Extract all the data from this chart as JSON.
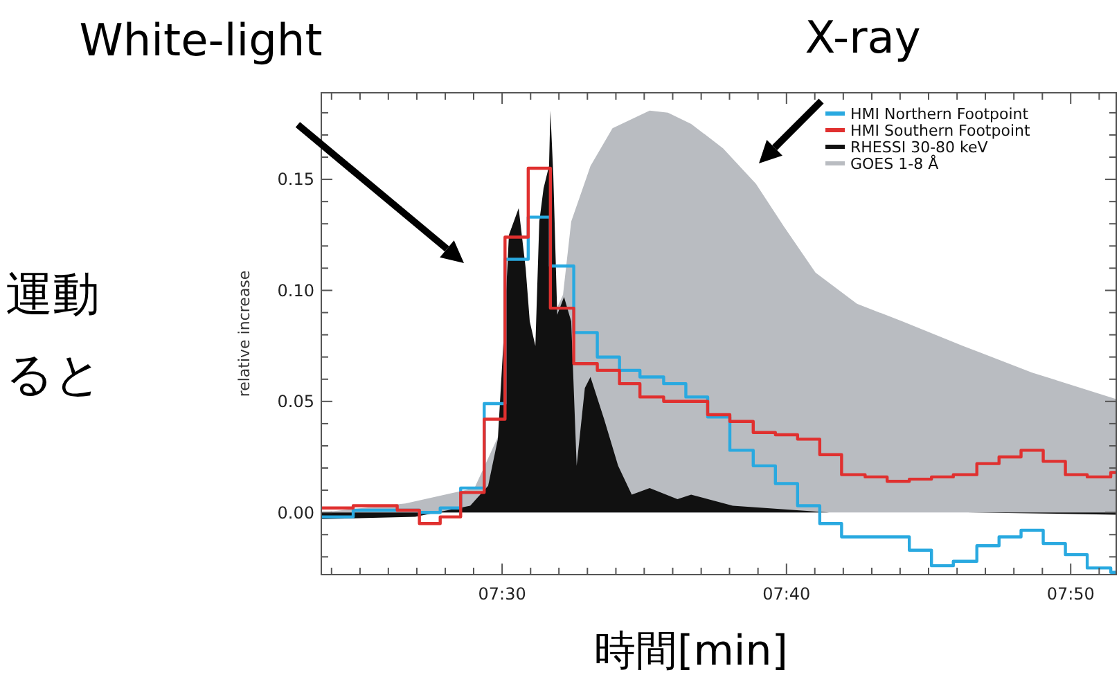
{
  "chart_data": {
    "type": "step",
    "xlabel": "時間[min]",
    "ylabel": "relative increase",
    "annotations": [
      "White-light",
      "X-ray",
      "運動",
      "ると"
    ],
    "xlim": [
      7.394,
      7.86
    ],
    "ylim": [
      -0.028,
      0.189
    ],
    "xticks": [
      {
        "value": 7.4,
        "label": null
      },
      {
        "value": 7.4167,
        "label": null
      },
      {
        "value": 7.4333,
        "label": null
      },
      {
        "value": 7.45,
        "label": null
      },
      {
        "value": 7.4667,
        "label": null
      },
      {
        "value": 7.4833,
        "label": null
      },
      {
        "value": 7.5,
        "label": "07:30"
      },
      {
        "value": 7.5167,
        "label": null
      },
      {
        "value": 7.5333,
        "label": null
      },
      {
        "value": 7.55,
        "label": null
      },
      {
        "value": 7.5667,
        "label": null
      },
      {
        "value": 7.5833,
        "label": null
      },
      {
        "value": 7.6,
        "label": null
      },
      {
        "value": 7.6167,
        "label": null
      },
      {
        "value": 7.6333,
        "label": null
      },
      {
        "value": 7.65,
        "label": null
      },
      {
        "value": 7.6667,
        "label": "07:40"
      },
      {
        "value": 7.6833,
        "label": null
      },
      {
        "value": 7.7,
        "label": null
      },
      {
        "value": 7.7167,
        "label": null
      },
      {
        "value": 7.7333,
        "label": null
      },
      {
        "value": 7.75,
        "label": null
      },
      {
        "value": 7.7667,
        "label": null
      },
      {
        "value": 7.7833,
        "label": null
      },
      {
        "value": 7.8,
        "label": null
      },
      {
        "value": 7.8167,
        "label": null
      },
      {
        "value": 7.8333,
        "label": "07:50"
      },
      {
        "value": 7.85,
        "label": null
      }
    ],
    "yticks": [
      {
        "value": -0.02,
        "label": null
      },
      {
        "value": -0.01,
        "label": null
      },
      {
        "value": 0,
        "label": "0.00"
      },
      {
        "value": 0.01,
        "label": null
      },
      {
        "value": 0.02,
        "label": null
      },
      {
        "value": 0.03,
        "label": null
      },
      {
        "value": 0.04,
        "label": null
      },
      {
        "value": 0.05,
        "label": "0.05"
      },
      {
        "value": 0.06,
        "label": null
      },
      {
        "value": 0.07,
        "label": null
      },
      {
        "value": 0.08,
        "label": null
      },
      {
        "value": 0.09,
        "label": null
      },
      {
        "value": 0.1,
        "label": "0.10"
      },
      {
        "value": 0.11,
        "label": null
      },
      {
        "value": 0.12,
        "label": null
      },
      {
        "value": 0.13,
        "label": null
      },
      {
        "value": 0.14,
        "label": null
      },
      {
        "value": 0.15,
        "label": "0.15"
      },
      {
        "value": 0.16,
        "label": null
      },
      {
        "value": 0.17,
        "label": null
      },
      {
        "value": 0.18,
        "label": null
      }
    ],
    "legend": "top right",
    "grid": false,
    "series": [
      {
        "name": "HMI Northern Footpoint",
        "color": "#29a9e0",
        "x": [
          7.394,
          7.4127,
          7.4385,
          7.4515,
          7.4637,
          7.4757,
          7.4895,
          7.5017,
          7.5153,
          7.5283,
          7.542,
          7.5558,
          7.5688,
          7.5808,
          7.5947,
          7.6077,
          7.6205,
          7.6335,
          7.6472,
          7.6602,
          7.6732,
          7.6862,
          7.699,
          7.7128,
          7.7257,
          7.7387,
          7.7517,
          7.7645,
          7.7783,
          7.7913,
          7.8042,
          7.8172,
          7.8302,
          7.843,
          7.8568,
          7.86
        ],
        "values": [
          -0.002,
          0.001,
          0.001,
          0.0,
          0.002,
          0.011,
          0.049,
          0.114,
          0.133,
          0.111,
          0.081,
          0.07,
          0.064,
          0.061,
          0.058,
          0.052,
          0.043,
          0.028,
          0.021,
          0.013,
          0.003,
          -0.005,
          -0.011,
          -0.011,
          -0.011,
          -0.017,
          -0.024,
          -0.022,
          -0.015,
          -0.011,
          -0.008,
          -0.014,
          -0.019,
          -0.025,
          -0.027,
          -0.027
        ]
      },
      {
        "name": "HMI Southern Footpoint",
        "color": "#e0302f",
        "x": [
          7.394,
          7.4127,
          7.4385,
          7.4515,
          7.4637,
          7.4757,
          7.4895,
          7.5017,
          7.5153,
          7.5283,
          7.542,
          7.5558,
          7.5688,
          7.5808,
          7.5947,
          7.6077,
          7.6205,
          7.6335,
          7.6472,
          7.6602,
          7.6732,
          7.6862,
          7.699,
          7.7128,
          7.7257,
          7.7387,
          7.7517,
          7.7645,
          7.7783,
          7.7913,
          7.8042,
          7.8172,
          7.8302,
          7.843,
          7.8568,
          7.86
        ],
        "values": [
          0.002,
          0.003,
          0.001,
          -0.005,
          -0.002,
          0.009,
          0.042,
          0.124,
          0.155,
          0.092,
          0.067,
          0.064,
          0.058,
          0.052,
          0.05,
          0.05,
          0.044,
          0.041,
          0.036,
          0.035,
          0.033,
          0.026,
          0.017,
          0.016,
          0.014,
          0.015,
          0.016,
          0.017,
          0.022,
          0.025,
          0.028,
          0.023,
          0.017,
          0.016,
          0.018,
          0.018
        ]
      },
      {
        "name": "RHESSI 30-80 keV",
        "color": "#111111",
        "type": "area",
        "x": [
          7.394,
          7.449,
          7.4813,
          7.4918,
          7.4975,
          7.5017,
          7.504,
          7.5097,
          7.5138,
          7.5162,
          7.5195,
          7.5218,
          7.5243,
          7.5275,
          7.5283,
          7.53,
          7.5323,
          7.5363,
          7.5405,
          7.5437,
          7.5485,
          7.5518,
          7.5598,
          7.568,
          7.576,
          7.5865,
          7.6028,
          7.6108,
          7.6352,
          7.6917,
          7.7727,
          7.86
        ],
        "values": [
          -0.003,
          -0.002,
          0.003,
          0.012,
          0.033,
          0.089,
          0.125,
          0.137,
          0.11,
          0.086,
          0.075,
          0.131,
          0.146,
          0.156,
          0.181,
          0.152,
          0.089,
          0.097,
          0.086,
          0.021,
          0.056,
          0.061,
          0.042,
          0.021,
          0.008,
          0.011,
          0.006,
          0.008,
          0.003,
          0.0,
          0.0,
          -0.001
        ]
      },
      {
        "name": "GOES 1-8 Å",
        "color": "#b9bcc1",
        "type": "area",
        "x": [
          7.394,
          7.4433,
          7.4838,
          7.5357,
          7.5405,
          7.5518,
          7.5647,
          7.5865,
          7.5972,
          7.6108,
          7.6295,
          7.6488,
          7.665,
          7.6837,
          7.708,
          7.7347,
          7.7702,
          7.8107,
          7.86
        ],
        "values": [
          0.0,
          0.004,
          0.011,
          0.098,
          0.131,
          0.156,
          0.173,
          0.181,
          0.18,
          0.175,
          0.164,
          0.148,
          0.129,
          0.108,
          0.094,
          0.086,
          0.075,
          0.063,
          0.051
        ]
      }
    ]
  }
}
